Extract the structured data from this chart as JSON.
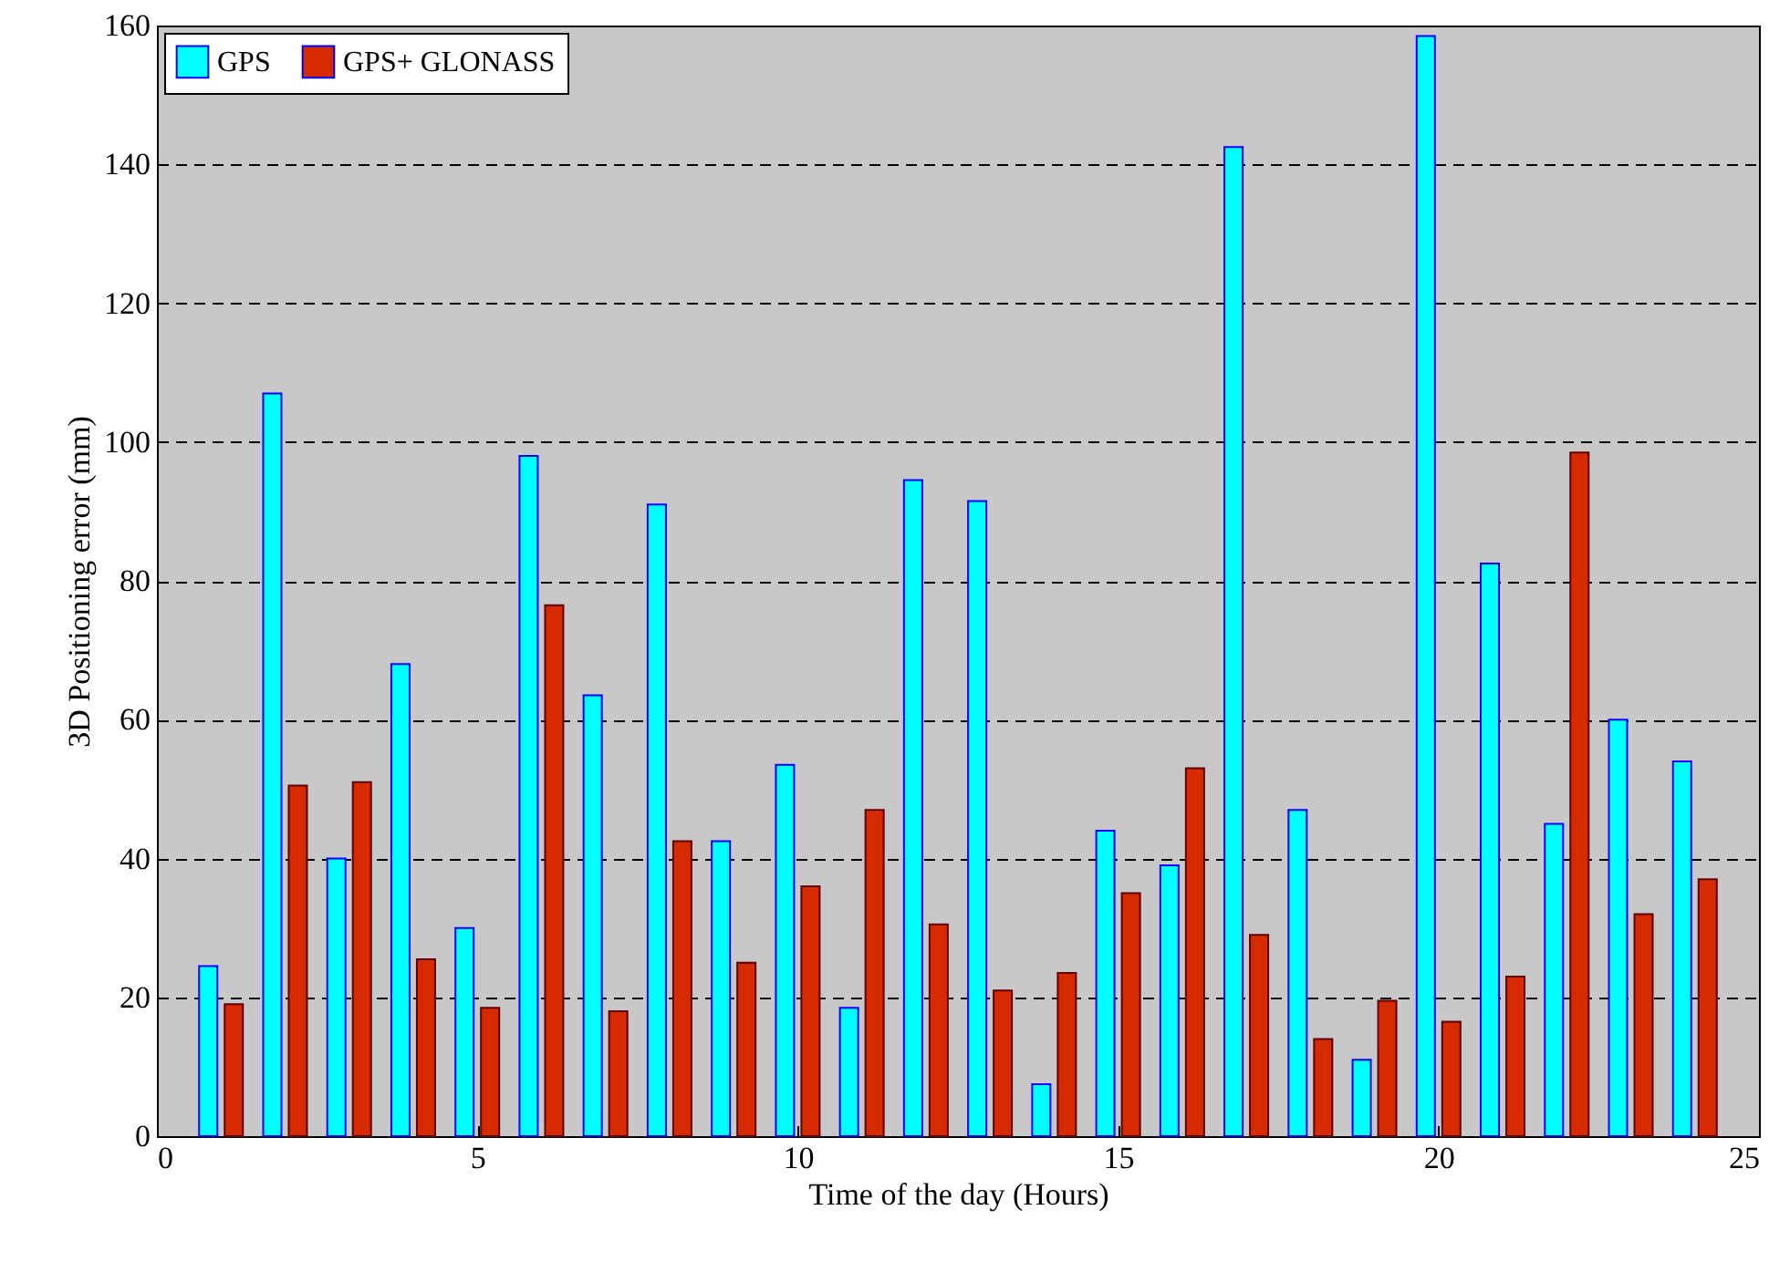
{
  "chart_data": {
    "type": "bar",
    "xlabel": "Time of the day (Hours)",
    "ylabel": "3D Positioning error (mm)",
    "x": [
      1,
      2,
      3,
      4,
      5,
      6,
      7,
      8,
      9,
      10,
      11,
      12,
      13,
      14,
      15,
      16,
      17,
      18,
      19,
      20,
      21,
      22,
      23,
      24
    ],
    "series": [
      {
        "name": "GPS",
        "color": "#00ffff",
        "values": [
          24.5,
          107,
          40,
          68,
          30,
          98,
          63.5,
          91,
          42.5,
          53.5,
          18.5,
          94.5,
          91.5,
          7.5,
          44,
          39,
          142.5,
          47,
          11,
          158.5,
          82.5,
          45,
          60,
          54
        ]
      },
      {
        "name": "GPS+ GLONASS",
        "color": "#d62a00",
        "values": [
          19,
          50.5,
          51,
          25.5,
          18.5,
          76.5,
          18,
          42.5,
          25,
          36,
          47,
          30.5,
          21,
          23.5,
          35,
          53,
          29,
          14,
          19.5,
          16.5,
          23,
          98.5,
          32,
          37
        ]
      }
    ],
    "xlim": [
      0,
      25
    ],
    "xticks": [
      0,
      5,
      10,
      15,
      20,
      25
    ],
    "ylim": [
      0,
      160
    ],
    "yticks": [
      0,
      20,
      40,
      60,
      80,
      100,
      120,
      140,
      160
    ],
    "grid": "y",
    "legend": "top left"
  }
}
